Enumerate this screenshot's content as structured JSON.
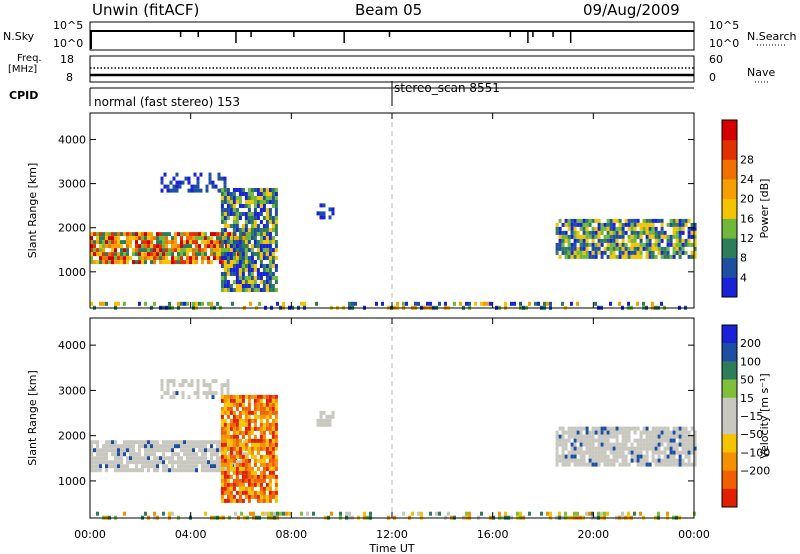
{
  "header": {
    "title": "Unwin (fitACF)",
    "beam": "Beam 05",
    "date": "09/Aug/2009"
  },
  "status_panels": {
    "nsky_label": "N.Sky",
    "nsearch_label": "N.Search",
    "left_ticks_top": [
      "10^5",
      "10^0"
    ],
    "right_ticks_top": [
      "10^5",
      "10^0"
    ],
    "freq_label": "Freq.",
    "freq_unit": "[MHz]",
    "freq_ticks": [
      "18",
      "8"
    ],
    "nave_label": "Nave",
    "nave_ticks": [
      "60",
      "0"
    ],
    "cpid_label": "CPID",
    "cpid_entries": [
      {
        "text": "normal (fast stereo) 153",
        "start_hour": 0
      },
      {
        "text": "stereo_scan 8551",
        "start_hour": 12
      }
    ]
  },
  "chart_data": [
    {
      "type": "heatmap",
      "panel": "power",
      "xlabel": "",
      "ylabel": "Slant Range [km]",
      "x_range_hours": [
        0,
        24
      ],
      "ylim": [
        180,
        4600
      ],
      "y_ticks": [
        1000,
        2000,
        3000,
        4000
      ],
      "colorbar": {
        "label": "Power [dB]",
        "ticks": [
          "4",
          "8",
          "12",
          "16",
          "20",
          "24",
          "28"
        ],
        "colors": [
          "#1a22d8",
          "#1e4fa0",
          "#2e7d5a",
          "#6fb83a",
          "#f5c400",
          "#f5a000",
          "#f07000",
          "#e23000",
          "#d40000"
        ]
      },
      "echo_regions": [
        {
          "start_hour": 0.0,
          "end_hour": 6.3,
          "range_start_km": 1250,
          "range_end_km": 1900,
          "level": "high"
        },
        {
          "start_hour": 2.8,
          "end_hour": 5.5,
          "range_start_km": 2850,
          "range_end_km": 3250,
          "level": "low"
        },
        {
          "start_hour": 5.2,
          "end_hour": 7.4,
          "range_start_km": 600,
          "range_end_km": 2900,
          "level": "medium"
        },
        {
          "start_hour": 9.0,
          "end_hour": 9.6,
          "range_start_km": 2250,
          "range_end_km": 2550,
          "level": "low"
        },
        {
          "start_hour": 18.5,
          "end_hour": 24.0,
          "range_start_km": 1350,
          "range_end_km": 2200,
          "level": "medium"
        },
        {
          "start_hour": 0.0,
          "end_hour": 24.0,
          "range_start_km": 200,
          "range_end_km": 320,
          "level": "ground"
        }
      ]
    },
    {
      "type": "heatmap",
      "panel": "velocity",
      "xlabel": "Time UT",
      "ylabel": "Slant Range [km]",
      "x_range_hours": [
        0,
        24
      ],
      "x_ticks": [
        "00:00",
        "04:00",
        "08:00",
        "12:00",
        "16:00",
        "20:00",
        "00:00"
      ],
      "ylim": [
        180,
        4600
      ],
      "y_ticks": [
        1000,
        2000,
        3000,
        4000
      ],
      "colorbar": {
        "label": "Velocity [m s⁻¹]",
        "ticks": [
          "200",
          "100",
          "50",
          "15",
          "−15",
          "−50",
          "−100",
          "−200"
        ],
        "colors": [
          "#1a22d8",
          "#1e4fa0",
          "#2e7d5a",
          "#7fc03a",
          "#c8c8c0",
          "#c8c8c0",
          "#f5c400",
          "#f59000",
          "#f06000",
          "#e02000"
        ]
      },
      "echo_regions": [
        {
          "start_hour": 0.0,
          "end_hour": 6.3,
          "range_start_km": 1250,
          "range_end_km": 1900,
          "level": "ground_scatter"
        },
        {
          "start_hour": 2.8,
          "end_hour": 5.5,
          "range_start_km": 2850,
          "range_end_km": 3250,
          "level": "ground_scatter"
        },
        {
          "start_hour": 5.2,
          "end_hour": 7.4,
          "range_start_km": 600,
          "range_end_km": 2900,
          "level": "negative"
        },
        {
          "start_hour": 9.0,
          "end_hour": 9.6,
          "range_start_km": 2250,
          "range_end_km": 2550,
          "level": "ground_scatter"
        },
        {
          "start_hour": 18.5,
          "end_hour": 24.0,
          "range_start_km": 1350,
          "range_end_km": 2200,
          "level": "ground_scatter"
        },
        {
          "start_hour": 0.0,
          "end_hour": 24.0,
          "range_start_km": 200,
          "range_end_km": 320,
          "level": "mixed"
        }
      ]
    }
  ]
}
